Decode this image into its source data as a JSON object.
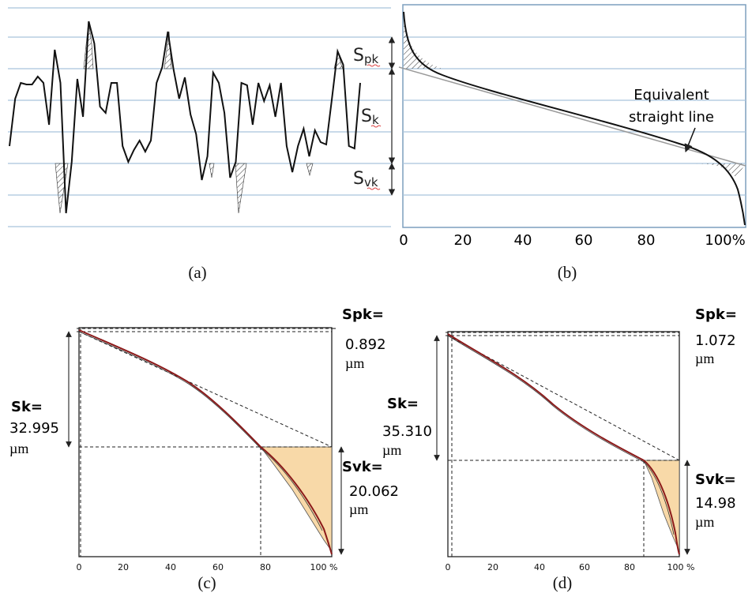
{
  "figure_a": {
    "caption": "(a)",
    "profile_y": [
      185,
      125,
      105,
      107,
      107,
      97,
      105,
      158,
      63,
      105,
      270,
      205,
      100,
      148,
      27,
      55,
      135,
      143,
      105,
      105,
      185,
      205,
      190,
      178,
      192,
      178,
      105,
      85,
      40,
      88,
      125,
      98,
      145,
      170,
      228,
      198,
      92,
      105,
      143,
      225,
      205,
      105,
      108,
      158,
      105,
      128,
      108,
      148,
      105,
      185,
      218,
      185,
      163,
      198,
      165,
      180,
      183,
      125,
      65,
      82,
      185,
      188,
      105
    ]
  },
  "figure_b": {
    "caption": "(b)",
    "labels": {
      "spk_main": "S",
      "spk_sub": "pk",
      "sk_main": "S",
      "sk_sub": "k",
      "svk_main": "S",
      "svk_sub": "vk"
    },
    "annotation_line1": "Equivalent",
    "annotation_line2": "straight line",
    "x_ticks": [
      "0",
      "20",
      "40",
      "60",
      "80",
      "100%"
    ]
  },
  "figure_c": {
    "caption": "(c)",
    "spk_label": "Spk=",
    "spk_value": "0.892",
    "spk_unit": "µm",
    "sk_label": "Sk=",
    "sk_value": "32.995",
    "sk_unit": "µm",
    "svk_label": "Svk=",
    "svk_value": "20.062",
    "svk_unit": "µm",
    "x_ticks": [
      "0",
      "20",
      "40",
      "60",
      "80",
      "100 %"
    ],
    "curve_color": "#8b1a1a",
    "fill_color": "#f8d9a8"
  },
  "figure_d": {
    "caption": "(d)",
    "spk_label": "Spk=",
    "spk_value": "1.072",
    "spk_unit": "µm",
    "sk_label": "Sk=",
    "sk_value": "35.310",
    "sk_unit": "µm",
    "svk_label": "Svk=",
    "svk_value": "14.98",
    "svk_unit": "µm",
    "x_ticks": [
      "0",
      "20",
      "40",
      "60",
      "80",
      "100 %"
    ],
    "curve_color": "#8b1a1a",
    "fill_color": "#f8d9a8"
  }
}
